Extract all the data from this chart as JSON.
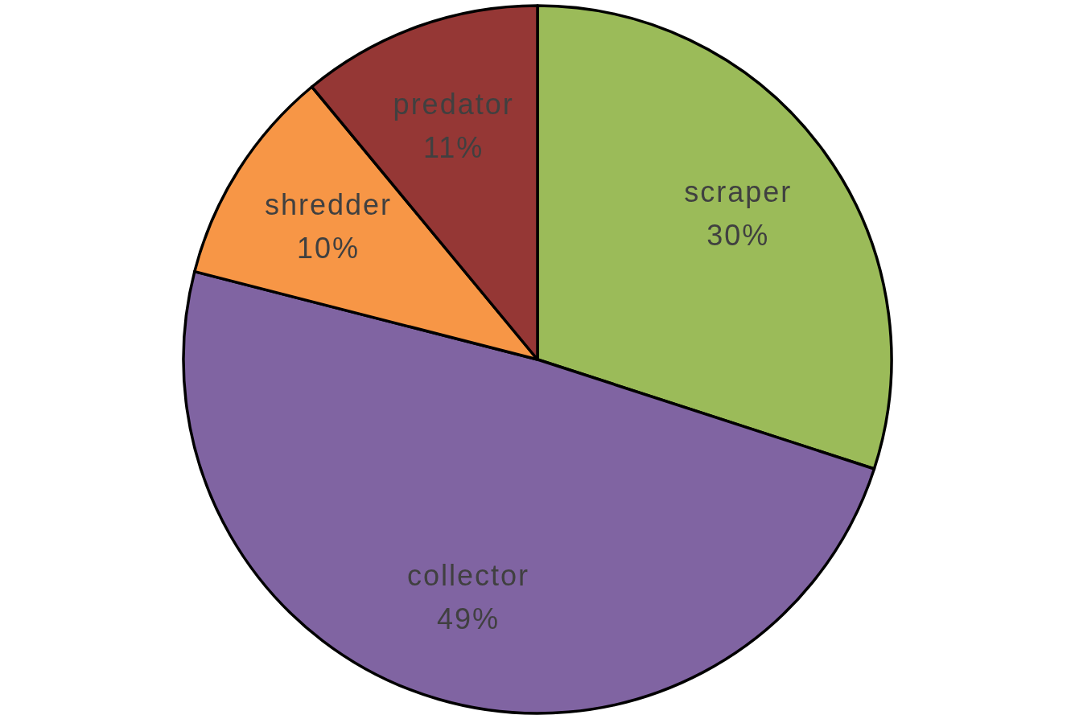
{
  "chart_data": {
    "type": "pie",
    "categories": [
      "scraper",
      "collector",
      "shredder",
      "predator"
    ],
    "values": [
      30,
      49,
      10,
      11
    ],
    "colors": [
      "#9bbb59",
      "#8064a2",
      "#f79646",
      "#953735"
    ],
    "value_labels": [
      "30%",
      "49%",
      "10%",
      "11%"
    ]
  }
}
